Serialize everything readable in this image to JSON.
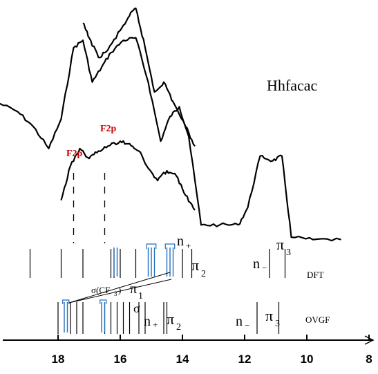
{
  "chart_data": {
    "type": "line",
    "title": "Hhfacac",
    "xlabel": "",
    "ylabel": "",
    "xlim": [
      20,
      8
    ],
    "x_tick_labels": [
      "18",
      "16",
      "14",
      "12",
      "10",
      "8"
    ],
    "x_ticks": [
      18,
      16,
      14,
      12,
      10,
      8
    ],
    "series": [
      {
        "points": [
          [
            20.0,
            0.62
          ],
          [
            19.3,
            0.58
          ],
          [
            18.8,
            0.52
          ],
          [
            18.3,
            0.43
          ],
          [
            17.9,
            0.55
          ],
          [
            17.5,
            0.84
          ],
          [
            17.2,
            0.87
          ],
          [
            16.9,
            0.7
          ],
          [
            16.6,
            0.76
          ],
          [
            16.3,
            0.82
          ],
          [
            15.9,
            0.87
          ],
          [
            15.5,
            0.88
          ],
          [
            15.1,
            0.7
          ],
          [
            14.7,
            0.46
          ],
          [
            14.4,
            0.56
          ],
          [
            14.1,
            0.6
          ],
          [
            13.8,
            0.48
          ],
          [
            13.4,
            0.12
          ],
          [
            12.8,
            0.12
          ],
          [
            12.2,
            0.12
          ],
          [
            11.9,
            0.19
          ],
          [
            11.5,
            0.4
          ],
          [
            11.1,
            0.38
          ],
          [
            10.8,
            0.4
          ],
          [
            10.5,
            0.07
          ],
          [
            9.8,
            0.06
          ],
          [
            8.9,
            0.06
          ]
        ]
      },
      {
        "points": [
          [
            17.2,
            0.94
          ],
          [
            17.0,
            0.88
          ],
          [
            16.7,
            0.8
          ],
          [
            16.4,
            0.83
          ],
          [
            16.0,
            0.91
          ],
          [
            15.7,
            0.97
          ],
          [
            15.5,
            1.0
          ],
          [
            15.2,
            0.84
          ],
          [
            14.9,
            0.66
          ],
          [
            14.6,
            0.7
          ],
          [
            14.3,
            0.62
          ],
          [
            13.9,
            0.52
          ],
          [
            13.6,
            0.44
          ]
        ]
      },
      {
        "points": [
          [
            17.9,
            0.22
          ],
          [
            17.6,
            0.36
          ],
          [
            17.3,
            0.43
          ],
          [
            17.0,
            0.39
          ],
          [
            16.7,
            0.42
          ],
          [
            16.4,
            0.44
          ],
          [
            16.0,
            0.46
          ],
          [
            15.7,
            0.45
          ],
          [
            15.4,
            0.42
          ],
          [
            15.1,
            0.35
          ],
          [
            14.8,
            0.3
          ],
          [
            14.5,
            0.34
          ],
          [
            14.2,
            0.32
          ],
          [
            13.9,
            0.24
          ],
          [
            13.6,
            0.18
          ]
        ]
      }
    ],
    "dashed_lines": [
      17.5,
      16.5
    ],
    "dft_bars": {
      "black": [
        18.9,
        17.9,
        17.2,
        16.3,
        16.2,
        16.0,
        15.5,
        14.0,
        13.7,
        11.2,
        10.7
      ],
      "blue": [
        16.2,
        16.1,
        15.1,
        15.0,
        14.9,
        14.5,
        14.4,
        14.3
      ]
    },
    "ovgf_bars": {
      "black": [
        18.0,
        17.6,
        17.4,
        17.2,
        16.5,
        16.3,
        16.1,
        15.9,
        15.7,
        15.4,
        15.2,
        14.6,
        14.5,
        11.6,
        10.9
      ],
      "blue": [
        17.8,
        17.7,
        16.6,
        16.5
      ]
    },
    "annotations": {
      "f2p_1": "F2p",
      "f2p_2": "F2p",
      "sigma_label": "σ",
      "sigma_cf3": "σ(CF",
      "sigma_cf3_sub": "3",
      "sigma_cf3_close": ")",
      "pi_1_a": "π",
      "pi_1_sub": "1",
      "n_plus_1": "n",
      "n_plus_1_sup": "+",
      "pi_2_1": "π",
      "pi_2_1_sub": "2",
      "n_minus_1": "n",
      "n_minus_1_sub": "−",
      "pi_3_1": "π",
      "pi_3_1_sub": "3",
      "dft": "DFT",
      "n_plus_2": "n",
      "n_plus_2_sub": "+",
      "pi_2_2": "π",
      "pi_2_2_sub": "2",
      "n_minus_2": "n",
      "n_minus_2_sub": "−",
      "pi_3_2": "π",
      "pi_3_2_sub": "3",
      "ovgf": "OVGF"
    },
    "colors": {
      "curve": "#000000",
      "bar_blue": "#1f6fbf",
      "label_red": "#cc0000"
    },
    "grid": false,
    "legend": "none"
  }
}
